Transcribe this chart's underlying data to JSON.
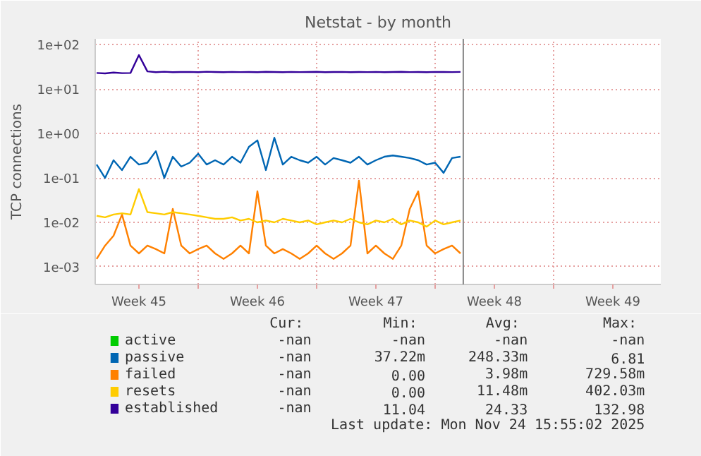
{
  "chart_data": {
    "type": "line",
    "title": "Netstat - by month",
    "ylabel": "TCP connections",
    "log": "y",
    "ylim": [
      0.0004,
      135
    ],
    "yticks": [
      {
        "value": 0.001,
        "label": "1e-03"
      },
      {
        "value": 0.01,
        "label": "1e-02"
      },
      {
        "value": 0.1,
        "label": "1e-01"
      },
      {
        "value": 1,
        "label": "1e+00"
      },
      {
        "value": 10,
        "label": "1e+01"
      },
      {
        "value": 100,
        "label": "1e+02"
      }
    ],
    "xlim": [
      "2025-11-02T22:00",
      "2025-12-06T08:00"
    ],
    "xticks": [
      {
        "value": "2025-11-05T12:00",
        "label": "Week 45"
      },
      {
        "value": "2025-11-09",
        "label": null
      },
      {
        "value": "2025-11-12T12:00",
        "label": "Week 46"
      },
      {
        "value": "2025-11-16",
        "label": null
      },
      {
        "value": "2025-11-19T12:00",
        "label": "Week 47"
      },
      {
        "value": "2025-11-23",
        "label": null
      },
      {
        "value": "2025-11-26T12:00",
        "label": "Week 48"
      },
      {
        "value": "2025-11-30",
        "label": null
      },
      {
        "value": "2025-12-03T12:00",
        "label": "Week 49"
      }
    ],
    "grid": true,
    "legend": "bottom",
    "ref_lines": [
      {
        "axis": "x",
        "value": "2025-11-24T15:55",
        "color": "#888888"
      }
    ],
    "x": [
      "2025-11-03T00:00",
      "2025-11-03T12:00",
      "2025-11-04T00:00",
      "2025-11-04T12:00",
      "2025-11-05T00:00",
      "2025-11-05T12:00",
      "2025-11-06T00:00",
      "2025-11-06T12:00",
      "2025-11-07T00:00",
      "2025-11-07T12:00",
      "2025-11-08T00:00",
      "2025-11-08T12:00",
      "2025-11-09T00:00",
      "2025-11-09T12:00",
      "2025-11-10T00:00",
      "2025-11-10T12:00",
      "2025-11-11T00:00",
      "2025-11-11T12:00",
      "2025-11-12T00:00",
      "2025-11-12T12:00",
      "2025-11-13T00:00",
      "2025-11-13T12:00",
      "2025-11-14T00:00",
      "2025-11-14T12:00",
      "2025-11-15T00:00",
      "2025-11-15T12:00",
      "2025-11-16T00:00",
      "2025-11-16T12:00",
      "2025-11-17T00:00",
      "2025-11-17T12:00",
      "2025-11-18T00:00",
      "2025-11-18T12:00",
      "2025-11-19T00:00",
      "2025-11-19T12:00",
      "2025-11-20T00:00",
      "2025-11-20T12:00",
      "2025-11-21T00:00",
      "2025-11-21T12:00",
      "2025-11-22T00:00",
      "2025-11-22T12:00",
      "2025-11-23T00:00",
      "2025-11-23T12:00",
      "2025-11-24T00:00",
      "2025-11-24T12:00"
    ],
    "series": [
      {
        "name": "active",
        "color": "#00cc00",
        "values": [
          null,
          null,
          null,
          null,
          null,
          null,
          null,
          null,
          null,
          null,
          null,
          null,
          null,
          null,
          null,
          null,
          null,
          null,
          null,
          null,
          null,
          null,
          null,
          null,
          null,
          null,
          null,
          null,
          null,
          null,
          null,
          null,
          null,
          null,
          null,
          null,
          null,
          null,
          null,
          null,
          null,
          null,
          null,
          null
        ]
      },
      {
        "name": "passive",
        "color": "#0066b3",
        "values": [
          0.2,
          0.1,
          0.25,
          0.15,
          0.3,
          0.2,
          0.22,
          0.4,
          0.1,
          0.3,
          0.18,
          0.22,
          0.35,
          0.2,
          0.25,
          0.2,
          0.3,
          0.22,
          0.5,
          0.7,
          0.15,
          0.8,
          0.2,
          0.3,
          0.25,
          0.22,
          0.3,
          0.2,
          0.28,
          0.25,
          0.22,
          0.3,
          0.2,
          0.25,
          0.3,
          0.32,
          0.3,
          0.28,
          0.25,
          0.2,
          0.22,
          0.13,
          0.28,
          0.3
        ]
      },
      {
        "name": "failed",
        "color": "#ff8000",
        "values": [
          0.0015,
          0.003,
          0.005,
          0.015,
          0.003,
          0.002,
          0.003,
          0.0025,
          0.002,
          0.02,
          0.003,
          0.002,
          0.0025,
          0.003,
          0.002,
          0.0015,
          0.002,
          0.003,
          0.002,
          0.05,
          0.003,
          0.002,
          0.0025,
          0.002,
          0.0015,
          0.002,
          0.003,
          0.002,
          0.0015,
          0.002,
          0.003,
          0.087,
          0.002,
          0.003,
          0.002,
          0.0015,
          0.003,
          0.02,
          0.05,
          0.003,
          0.002,
          0.0025,
          0.003,
          0.002
        ]
      },
      {
        "name": "resets",
        "color": "#ffcc00",
        "values": [
          0.014,
          0.013,
          0.015,
          0.016,
          0.015,
          0.056,
          0.017,
          0.016,
          0.015,
          0.017,
          0.016,
          0.015,
          0.014,
          0.013,
          0.012,
          0.012,
          0.013,
          0.011,
          0.012,
          0.01,
          0.011,
          0.01,
          0.012,
          0.011,
          0.01,
          0.011,
          0.009,
          0.01,
          0.011,
          0.01,
          0.012,
          0.01,
          0.009,
          0.011,
          0.01,
          0.012,
          0.009,
          0.011,
          0.01,
          0.008,
          0.011,
          0.009,
          0.01,
          0.011
        ]
      },
      {
        "name": "established",
        "color": "#330099",
        "values": [
          23,
          22.5,
          23.5,
          22.8,
          23,
          58,
          25,
          24,
          24.5,
          24,
          24.2,
          24.3,
          24,
          24.5,
          24.2,
          24,
          24.3,
          24.1,
          24.2,
          24,
          24.4,
          24.2,
          24,
          24.3,
          24.1,
          24.2,
          24.4,
          24,
          24.2,
          24.3,
          24,
          24.2,
          24.1,
          24.3,
          24,
          24.2,
          24.4,
          24.1,
          24.2,
          24,
          24.3,
          24.2,
          24.1,
          24.3
        ]
      }
    ],
    "annotations": [
      "Cur:",
      "Min:",
      "Avg:",
      "Max:",
      "-nan",
      "-nan",
      "-nan",
      "-nan",
      "-nan",
      "37.22m",
      "248.33m",
      "6.81",
      "-nan",
      "0.00",
      "3.98m",
      "729.58m",
      "-nan",
      "0.00",
      "11.48m",
      "402.03m",
      "-nan",
      "11.04",
      "24.33",
      "132.98",
      "Last update: Mon Nov 24 15:55:02 2025"
    ]
  }
}
